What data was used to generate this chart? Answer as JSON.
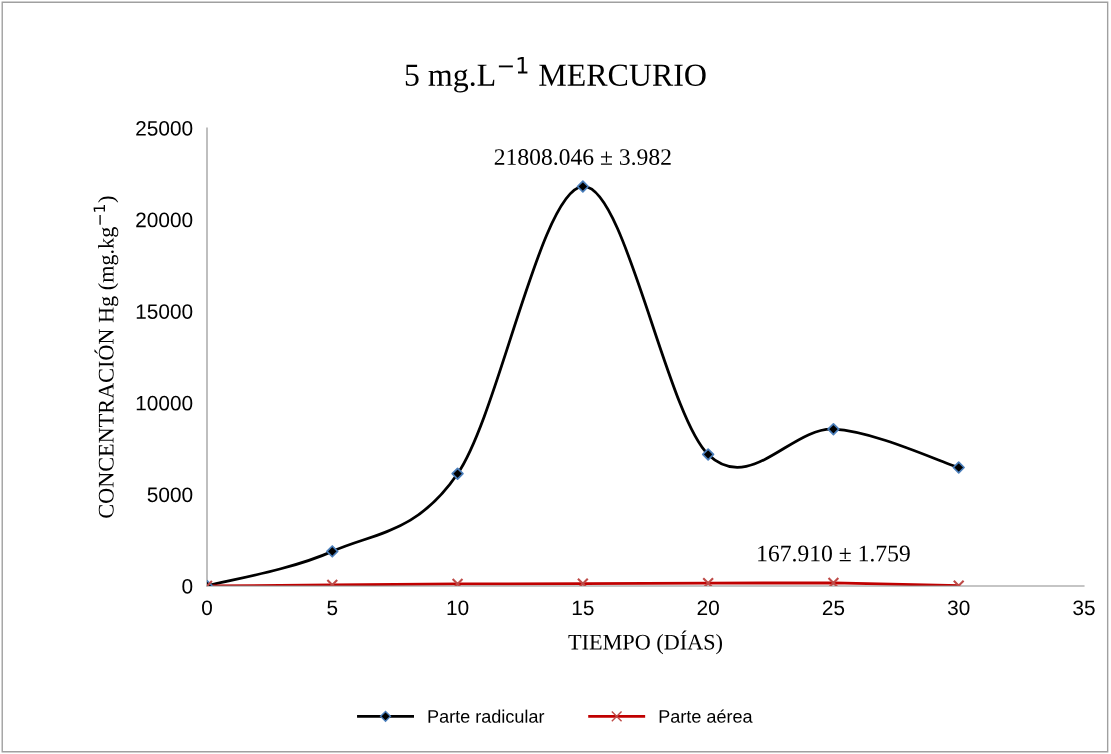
{
  "chart_data": {
    "type": "line",
    "title": "5 mg.L$^{−1}$ MERCURIO",
    "xlabel": "TIEMPO (DÍAS)",
    "ylabel": "CONCENTRACIÓN Hg (mg.kg$^{−1}$)",
    "x": [
      0,
      5,
      10,
      15,
      20,
      25,
      30
    ],
    "series": [
      {
        "name": "Parte radicular",
        "color": "#000000",
        "marker": "diamond",
        "values": [
          0,
          1890,
          6130,
          21808.046,
          7180,
          8560,
          6470
        ]
      },
      {
        "name": "Parte aérea",
        "color": "#c00000",
        "marker": "cross",
        "values": [
          0,
          60,
          110,
          130,
          160,
          167.91,
          20
        ]
      }
    ],
    "annotations": [
      {
        "text": "21808.046 ± 3.982",
        "x": 15,
        "y": 21808.046
      },
      {
        "text": "167.910 ± 1.759",
        "x": 25,
        "y": 167.91
      }
    ],
    "xlim": [
      0,
      35
    ],
    "xticks": [
      0,
      5,
      10,
      15,
      20,
      25,
      30,
      35
    ],
    "ylim": [
      0,
      25000
    ],
    "yticks": [
      0,
      5000,
      10000,
      15000,
      20000,
      25000
    ],
    "grid": false,
    "legend": "bottom"
  }
}
